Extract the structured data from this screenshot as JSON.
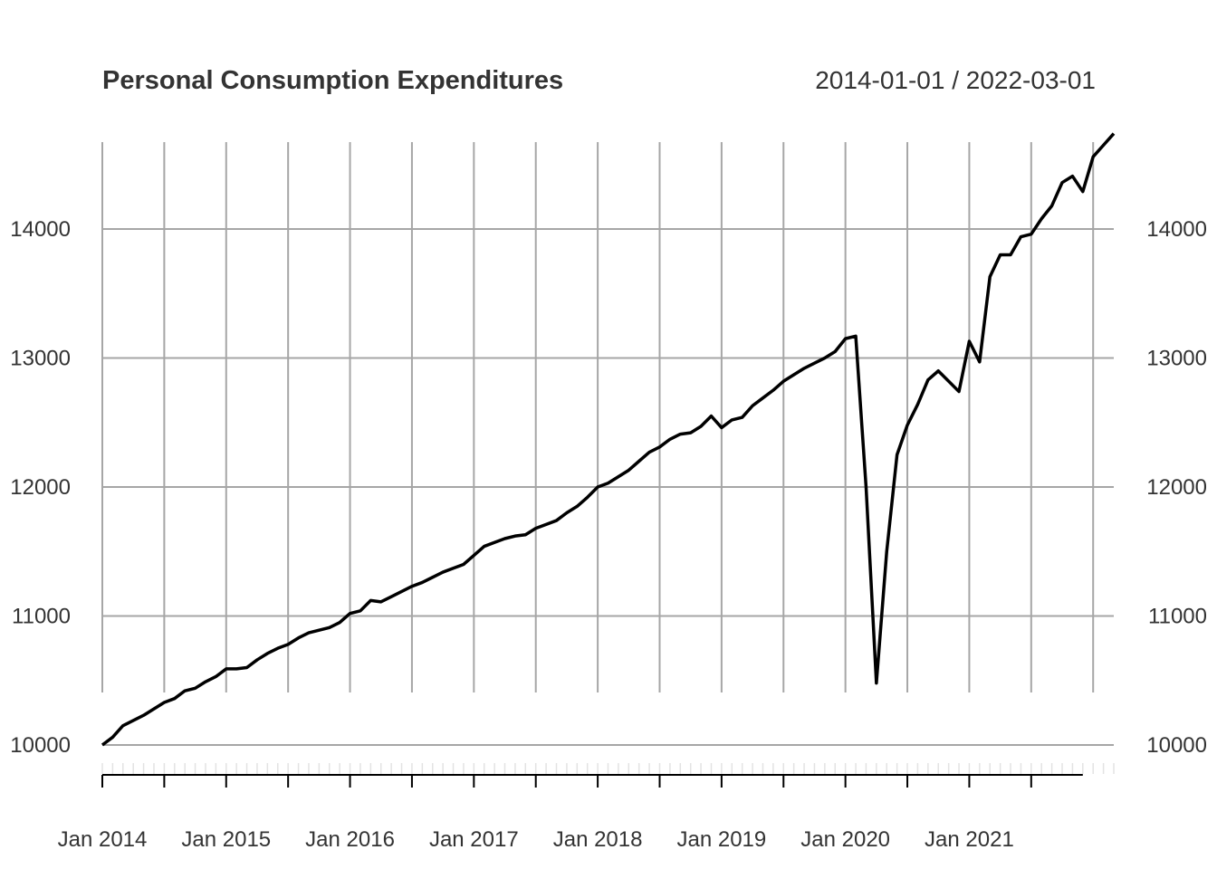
{
  "chart_data": {
    "type": "line",
    "title": "Personal Consumption Expenditures",
    "date_range": "2014-01-01 / 2022-03-01",
    "xlabel": "",
    "ylabel": "",
    "ylim": [
      9900,
      14800
    ],
    "y_ticks": [
      10000,
      11000,
      12000,
      13000,
      14000
    ],
    "x_ticks": [
      {
        "date": "2014-01",
        "label": "Jan 2014"
      },
      {
        "date": "2015-01",
        "label": "Jan 2015"
      },
      {
        "date": "2016-01",
        "label": "Jan 2016"
      },
      {
        "date": "2017-01",
        "label": "Jan 2017"
      },
      {
        "date": "2018-01",
        "label": "Jan 2018"
      },
      {
        "date": "2019-01",
        "label": "Jan 2019"
      },
      {
        "date": "2020-01",
        "label": "Jan 2020"
      },
      {
        "date": "2021-01",
        "label": "Jan 2021"
      }
    ],
    "grid": true,
    "start": "2014-01",
    "frequency": "monthly",
    "values": [
      10000,
      10060,
      10150,
      10190,
      10230,
      10280,
      10330,
      10360,
      10420,
      10440,
      10490,
      10530,
      10590,
      10590,
      10600,
      10660,
      10710,
      10750,
      10780,
      10830,
      10870,
      10890,
      10910,
      10950,
      11020,
      11040,
      11120,
      11110,
      11150,
      11190,
      11230,
      11260,
      11300,
      11340,
      11370,
      11400,
      11470,
      11540,
      11570,
      11600,
      11620,
      11630,
      11680,
      11710,
      11740,
      11800,
      11850,
      11920,
      12000,
      12030,
      12080,
      12130,
      12200,
      12270,
      12310,
      12370,
      12410,
      12420,
      12470,
      12550,
      12460,
      12520,
      12540,
      12630,
      12690,
      12750,
      12820,
      12870,
      12920,
      12960,
      13000,
      13050,
      13150,
      13170,
      12000,
      10480,
      11500,
      12250,
      12480,
      12640,
      12830,
      12900,
      12820,
      12740,
      13130,
      12970,
      13630,
      13800,
      13800,
      13940,
      13960,
      14080,
      14180,
      14360,
      14410,
      14290,
      14560,
      14650,
      14740
    ]
  }
}
